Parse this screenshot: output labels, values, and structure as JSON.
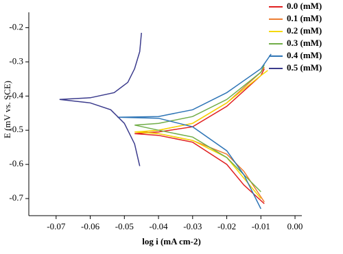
{
  "chart_data": {
    "type": "line",
    "x_label": "log i (mA cm-2)",
    "y_label": "E (mV vs. SCE)",
    "xlim": [
      -0.078,
      0.002
    ],
    "ylim": [
      -0.75,
      -0.155
    ],
    "xticks": [
      -0.07,
      -0.06,
      -0.05,
      -0.04,
      -0.03,
      -0.02,
      -0.01,
      {
        "value": 0,
        "label": "0.00"
      }
    ],
    "yticks": [
      -0.2,
      -0.3,
      -0.4,
      -0.5,
      -0.6,
      -0.7
    ],
    "series": [
      {
        "name": "0.0 (mM)",
        "color": "#e02020",
        "x": [
          -0.047,
          -0.04,
          -0.03,
          -0.02,
          -0.01,
          -0.009,
          null,
          -0.047,
          -0.04,
          -0.03,
          -0.02,
          -0.015,
          -0.009
        ],
        "values": [
          -0.51,
          -0.505,
          -0.49,
          -0.43,
          -0.34,
          -0.32,
          null,
          -0.51,
          -0.515,
          -0.535,
          -0.6,
          -0.66,
          -0.715
        ]
      },
      {
        "name": "0.1 (mM)",
        "color": "#ed7d31",
        "x": [
          -0.045,
          -0.04,
          -0.03,
          -0.02,
          -0.01,
          -0.009,
          null,
          -0.045,
          -0.04,
          -0.03,
          -0.02,
          -0.015,
          -0.009
        ],
        "values": [
          -0.505,
          -0.5,
          -0.48,
          -0.42,
          -0.33,
          -0.315,
          null,
          -0.505,
          -0.51,
          -0.53,
          -0.57,
          -0.62,
          -0.71
        ]
      },
      {
        "name": "0.2 (mM)",
        "color": "#f5d800",
        "x": [
          -0.047,
          -0.04,
          -0.03,
          -0.02,
          -0.01,
          -0.008,
          null,
          -0.047,
          -0.04,
          -0.03,
          -0.02,
          -0.015,
          -0.01
        ],
        "values": [
          -0.505,
          -0.5,
          -0.48,
          -0.42,
          -0.34,
          -0.325,
          null,
          -0.505,
          -0.51,
          -0.53,
          -0.58,
          -0.64,
          -0.7
        ]
      },
      {
        "name": "0.3 (mM)",
        "color": "#70ad47",
        "x": [
          -0.047,
          -0.04,
          -0.03,
          -0.02,
          -0.01,
          -0.009,
          null,
          -0.047,
          -0.04,
          -0.03,
          -0.02,
          -0.015,
          -0.01
        ],
        "values": [
          -0.485,
          -0.48,
          -0.46,
          -0.41,
          -0.33,
          -0.308,
          null,
          -0.485,
          -0.5,
          -0.52,
          -0.58,
          -0.63,
          -0.68
        ]
      },
      {
        "name": "0.4 (mM)",
        "color": "#2e75b6",
        "x": [
          -0.052,
          -0.04,
          -0.03,
          -0.02,
          -0.01,
          -0.007,
          null,
          -0.052,
          -0.04,
          -0.03,
          -0.02,
          -0.015,
          -0.01
        ],
        "values": [
          -0.462,
          -0.46,
          -0.44,
          -0.39,
          -0.32,
          -0.277,
          null,
          -0.462,
          -0.465,
          -0.49,
          -0.56,
          -0.63,
          -0.73
        ]
      },
      {
        "name": "0.5 (mM)",
        "color": "#3a3a8c",
        "x": [
          -0.069,
          -0.06,
          -0.053,
          -0.049,
          -0.047,
          -0.0455,
          -0.045,
          null,
          -0.069,
          -0.06,
          -0.054,
          -0.05,
          -0.047,
          -0.0455
        ],
        "values": [
          -0.41,
          -0.405,
          -0.39,
          -0.36,
          -0.32,
          -0.27,
          -0.215,
          null,
          -0.41,
          -0.42,
          -0.44,
          -0.48,
          -0.54,
          -0.605
        ]
      }
    ]
  }
}
